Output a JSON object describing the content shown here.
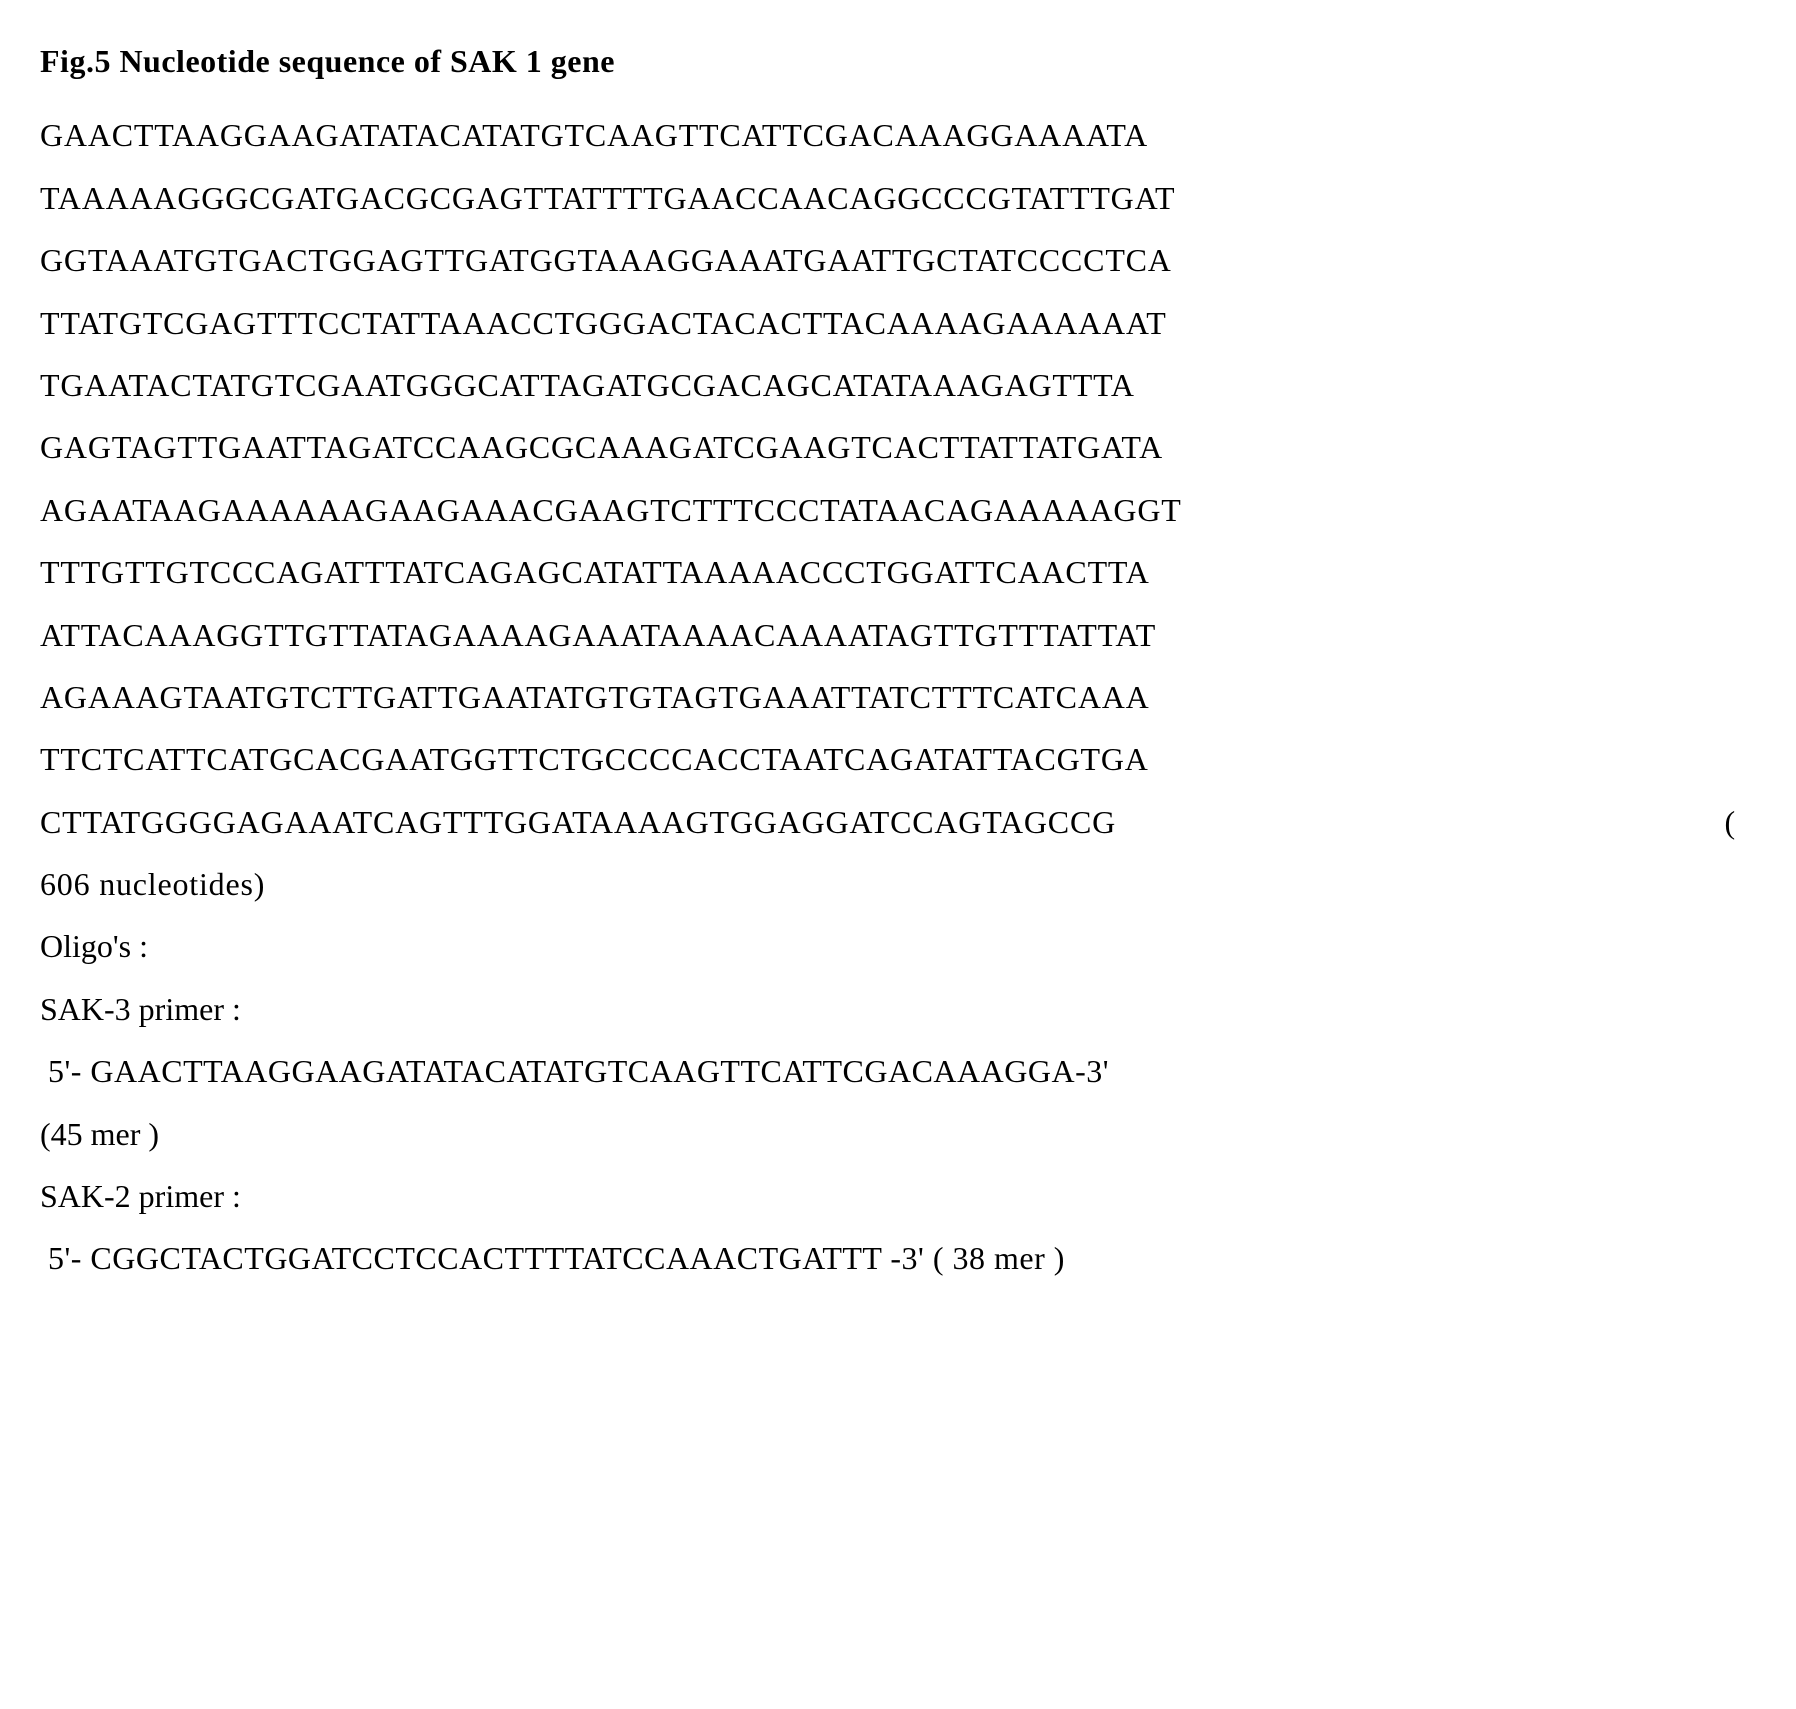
{
  "figure": {
    "title": "Fig.5  Nucleotide sequence of SAK 1  gene",
    "sequence_lines": [
      "GAACTTAAGGAAGATATACATATGTCAAGTTCATTCGACAAAGGAAAATA",
      "TAAAAAGGGCGATGACGCGAGTTATTTTGAACCAACAGGCCCGTATTTGAT",
      "GGTAAATGTGACTGGAGTTGATGGTAAAGGAAATGAATTGCTATCCCCTCA",
      "TTATGTCGAGTTTCCTATTAAACCTGGGACTACACTTACAAAAGAAAAAAT",
      "TGAATACTATGTCGAATGGGCATTAGATGCGACAGCATATAAAGAGTTTA",
      "GAGTAGTTGAATTAGATCCAAGCGCAAAGATCGAAGTCACTTATTATGATA",
      "AGAATAAGAAAAAAGAAGAAACGAAGTCTTTCCCTATAACAGAAAAAGGT",
      "TTTGTTGTCCCAGATTTATCAGAGCATATTAAAAACCCTGGATTCAACTTA",
      "ATTACAAAGGTTGTTATAGAAAAGAAATAAAACAAAATAGTTGTTTATTAT",
      "AGAAAGTAATGTCTTGATTGAATATGTGTAGTGAAATTATCTTTCATCAAA",
      "TTCTCATTCATGCACGAATGGTTCTGCCCCACCTAATCAGATATTACGTGA",
      "CTTATGGGGAGAAATCAGTTTGGATAAAAGTGGAGGATCCAGTAGCCG"
    ],
    "sequence_count_open": "(",
    "sequence_count": "606 nucleotides)",
    "oligos_label": "Oligo's :",
    "primers": [
      {
        "label": "SAK-3  primer :",
        "sequence": "5'- GAACTTAAGGAAGATATACATATGTCAAGTTCATTCGACAAAGGA-3'",
        "mer": "(45 mer )"
      },
      {
        "label": "SAK-2 primer :",
        "sequence": "5'- CGGCTACTGGATCCTCCACTTTTATCCAAACTGATTT  -3' ( 38 mer )",
        "mer": ""
      }
    ]
  }
}
